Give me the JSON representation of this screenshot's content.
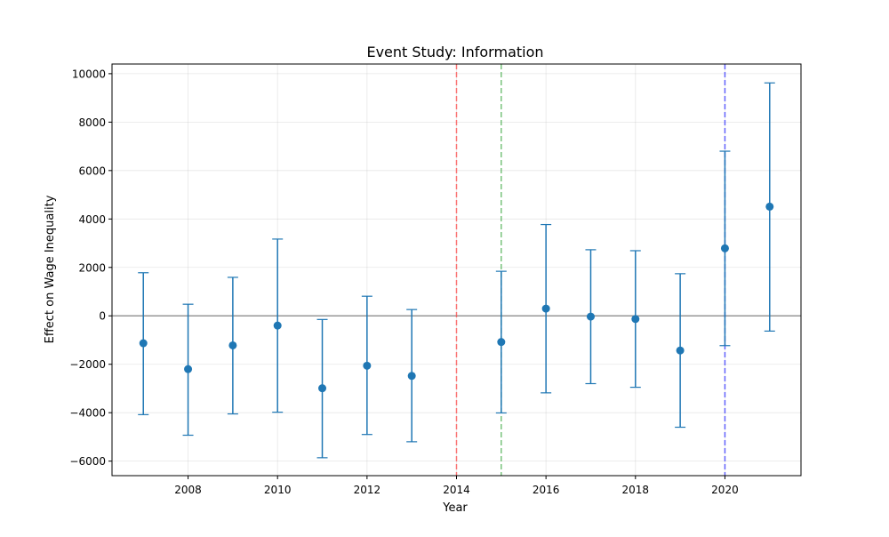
{
  "chart_data": {
    "type": "scatter",
    "title": "Event Study: Information",
    "xlabel": "Year",
    "ylabel": "Effect on Wage Inequality",
    "xlim": [
      2006.3,
      2021.7
    ],
    "ylim": [
      -6600,
      10400
    ],
    "xticks": [
      2008,
      2010,
      2012,
      2014,
      2016,
      2018,
      2020
    ],
    "yticks": [
      -6000,
      -4000,
      -2000,
      0,
      2000,
      4000,
      6000,
      8000,
      10000
    ],
    "grid": true,
    "colors": {
      "point": "#1f77b4",
      "errorbar": "#1f77b4",
      "zero_line": "#808080",
      "vline_2014": "#ff4d4d",
      "vline_2015": "#4caf50",
      "vline_2020": "#3333ff"
    },
    "series": [
      {
        "x": [
          2007,
          2008,
          2009,
          2010,
          2011,
          2012,
          2013,
          2015,
          2016,
          2017,
          2018,
          2019,
          2020,
          2021
        ],
        "y": [
          -1130,
          -2200,
          -1220,
          -400,
          -2990,
          -2060,
          -2480,
          -1080,
          300,
          -30,
          -130,
          -1430,
          2790,
          4510
        ],
        "lower": [
          -4080,
          -4930,
          -4050,
          -3980,
          -5860,
          -4900,
          -5200,
          -4010,
          -3180,
          -2800,
          -2950,
          -4600,
          -1230,
          -630
        ],
        "upper": [
          1780,
          480,
          1590,
          3170,
          -150,
          810,
          260,
          1840,
          3770,
          2730,
          2690,
          1740,
          6800,
          9620
        ]
      }
    ],
    "reference_lines": [
      {
        "axis": "y",
        "value": 0
      },
      {
        "axis": "x",
        "value": 2014
      },
      {
        "axis": "x",
        "value": 2015
      },
      {
        "axis": "x",
        "value": 2020
      }
    ]
  }
}
